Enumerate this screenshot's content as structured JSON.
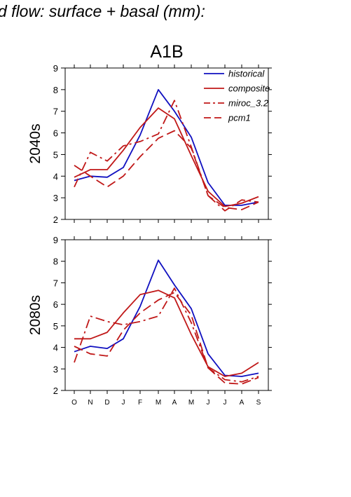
{
  "figure": {
    "title": "d flow: surface + basal (mm):",
    "subtitle": "A1B"
  },
  "colors": {
    "historical": "#1010c0",
    "composite": "#c01818",
    "miroc_3.2": "#c01818",
    "pcm1": "#c01818"
  },
  "legend": {
    "placement": "top-right of top panel",
    "entries": [
      {
        "label": "historical",
        "style": "solid",
        "color": "#1010c0"
      },
      {
        "label": "composite",
        "style": "solid",
        "color": "#c01818"
      },
      {
        "label": "miroc_3.2",
        "style": "dashdot",
        "color": "#c01818"
      },
      {
        "label": "pcm1",
        "style": "dashed",
        "color": "#c01818"
      }
    ]
  },
  "chart_data": [
    {
      "type": "line",
      "panel_label": "2040s",
      "categories": [
        "O",
        "N",
        "D",
        "J",
        "F",
        "M",
        "A",
        "M",
        "J",
        "J",
        "A",
        "S"
      ],
      "ylim": [
        2,
        9
      ],
      "yticks": [
        2,
        3,
        4,
        5,
        6,
        7,
        8,
        9
      ],
      "series": [
        {
          "name": "historical",
          "style": "solid",
          "color": "#1010c0",
          "values": [
            3.8,
            4.0,
            3.95,
            4.4,
            5.9,
            8.0,
            7.0,
            5.8,
            3.7,
            2.65,
            2.65,
            2.8
          ]
        },
        {
          "name": "composite",
          "style": "solid",
          "color": "#c01818",
          "values": [
            3.95,
            4.3,
            4.3,
            5.2,
            6.25,
            7.15,
            6.65,
            4.95,
            3.3,
            2.6,
            2.75,
            3.05
          ]
        },
        {
          "name": "miroc_3.2",
          "style": "dashdot",
          "color": "#c01818",
          "values": [
            3.5,
            5.1,
            4.7,
            5.4,
            5.6,
            5.95,
            7.5,
            5.35,
            3.1,
            2.4,
            2.9,
            2.8
          ]
        },
        {
          "name": "pcm1",
          "style": "dashed",
          "color": "#c01818",
          "values": [
            4.5,
            4.0,
            3.5,
            4.0,
            4.9,
            5.75,
            6.1,
            5.3,
            3.1,
            2.55,
            2.45,
            2.8
          ]
        }
      ]
    },
    {
      "type": "line",
      "panel_label": "2080s",
      "categories": [
        "O",
        "N",
        "D",
        "J",
        "F",
        "M",
        "A",
        "M",
        "J",
        "J",
        "A",
        "S"
      ],
      "ylim": [
        2,
        9
      ],
      "yticks": [
        2,
        3,
        4,
        5,
        6,
        7,
        8,
        9
      ],
      "series": [
        {
          "name": "historical",
          "style": "solid",
          "color": "#1010c0",
          "values": [
            3.8,
            4.05,
            3.95,
            4.4,
            5.9,
            8.05,
            6.9,
            5.8,
            3.7,
            2.7,
            2.65,
            2.8
          ]
        },
        {
          "name": "composite",
          "style": "solid",
          "color": "#c01818",
          "values": [
            4.4,
            4.4,
            4.7,
            5.6,
            6.45,
            6.65,
            6.3,
            4.6,
            3.1,
            2.65,
            2.8,
            3.3
          ]
        },
        {
          "name": "miroc_3.2",
          "style": "dashdot",
          "color": "#c01818",
          "values": [
            3.3,
            5.45,
            5.2,
            5.05,
            5.2,
            5.45,
            6.75,
            5.15,
            3.05,
            2.5,
            2.4,
            2.65
          ]
        },
        {
          "name": "pcm1",
          "style": "dashed",
          "color": "#c01818",
          "values": [
            4.05,
            3.7,
            3.6,
            4.8,
            5.6,
            6.2,
            6.55,
            5.5,
            3.05,
            2.35,
            2.3,
            2.6
          ]
        }
      ]
    }
  ]
}
